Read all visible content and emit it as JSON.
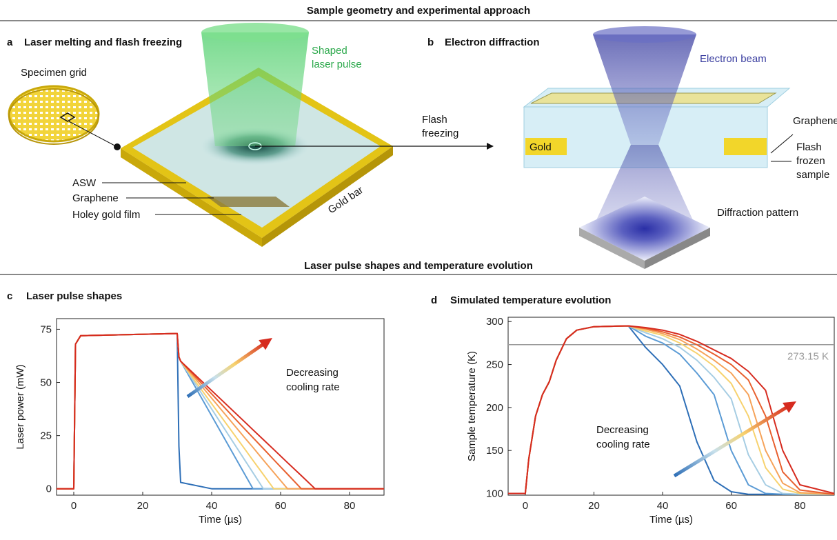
{
  "sections": [
    "Sample geometry and experimental approach",
    "Laser pulse shapes and temperature evolution"
  ],
  "panels": {
    "a": {
      "letter": "a",
      "title": "Laser melting and flash freezing",
      "specimen_grid": "Specimen grid",
      "laser": [
        "Shaped",
        "laser pulse"
      ],
      "asw": "ASW",
      "graphene": "Graphene",
      "holey": "Holey gold film",
      "gold_bar": "Gold bar",
      "flash": [
        "Flash",
        "freezing"
      ]
    },
    "b": {
      "letter": "b",
      "title": "Electron diffraction",
      "beam": "Electron beam",
      "graphene": "Graphene",
      "gold": "Gold",
      "sample": [
        "Flash",
        "frozen",
        "sample"
      ],
      "pattern": "Diffraction pattern"
    }
  },
  "chart_data": [
    {
      "type": "line",
      "panel": "c",
      "title": "Laser pulse shapes",
      "xlabel": "Time (µs)",
      "ylabel": "Laser power (mW)",
      "annotation": [
        "Decreasing",
        "cooling rate"
      ],
      "x": [
        -5,
        0,
        0.5,
        2,
        30,
        30.5,
        31,
        40,
        50,
        52,
        55,
        58,
        62,
        66,
        70,
        90
      ],
      "series": [
        {
          "color": "#2e6fb7",
          "values": [
            0,
            0,
            68,
            72,
            73,
            20,
            3,
            0,
            0,
            0,
            0,
            0,
            0,
            0,
            0,
            0
          ]
        },
        {
          "color": "#5b9bd5",
          "values": [
            0,
            0,
            68,
            72,
            73,
            62,
            60,
            34.3,
            5.7,
            0,
            0,
            0,
            0,
            0,
            0,
            0
          ]
        },
        {
          "color": "#a6cde3",
          "values": [
            0,
            0,
            68,
            72,
            73,
            62,
            60,
            37.5,
            12.5,
            7.5,
            0,
            0,
            0,
            0,
            0,
            0
          ]
        },
        {
          "color": "#f7d26e",
          "values": [
            0,
            0,
            68,
            72,
            73,
            62,
            60,
            40,
            17.8,
            13.3,
            6.7,
            0,
            0,
            0,
            0,
            0
          ]
        },
        {
          "color": "#f6a35a",
          "values": [
            0,
            0,
            68,
            72,
            73,
            62,
            60,
            42.6,
            23.2,
            19.4,
            13.5,
            7.7,
            0,
            0,
            0,
            0
          ]
        },
        {
          "color": "#e8602f",
          "values": [
            0,
            0,
            68,
            72,
            73,
            62,
            60,
            44.6,
            27.4,
            24,
            18.9,
            13.7,
            6.9,
            0,
            0,
            0
          ]
        },
        {
          "color": "#d62b1f",
          "values": [
            0,
            0,
            68,
            72,
            73,
            62,
            60,
            46.2,
            30.8,
            27.7,
            23.1,
            18.5,
            12.3,
            6.2,
            0,
            0
          ]
        }
      ],
      "xlim": [
        -5,
        90
      ],
      "ylim": [
        -3,
        80
      ],
      "xticks": [
        0,
        20,
        40,
        60,
        80
      ],
      "yticks": [
        0,
        25,
        50,
        75
      ]
    },
    {
      "type": "line",
      "panel": "d",
      "title": "Simulated temperature evolution",
      "xlabel": "Time (µs)",
      "ylabel": "Sample temperature (K)",
      "annotation": [
        "Decreasing",
        "cooling rate"
      ],
      "hline": {
        "value": 273.15,
        "label": "273.15 K",
        "color": "#9a9a9a"
      },
      "x": [
        -5,
        0,
        1,
        3,
        5,
        7,
        9,
        12,
        15,
        20,
        30,
        35,
        40,
        45,
        50,
        55,
        60,
        65,
        70,
        75,
        80,
        90
      ],
      "series": [
        {
          "color": "#2e6fb7",
          "values": [
            100,
            100,
            140,
            190,
            215,
            230,
            255,
            280,
            290,
            294,
            295,
            270,
            250,
            225,
            160,
            115,
            102,
            99,
            99,
            99,
            99,
            99
          ]
        },
        {
          "color": "#5b9bd5",
          "values": [
            100,
            100,
            140,
            190,
            215,
            230,
            255,
            280,
            290,
            294,
            295,
            283,
            275,
            262,
            240,
            215,
            150,
            110,
            100,
            99,
            99,
            99
          ]
        },
        {
          "color": "#a6cde3",
          "values": [
            100,
            100,
            140,
            190,
            215,
            230,
            255,
            280,
            290,
            294,
            295,
            287,
            280,
            270,
            255,
            235,
            210,
            145,
            110,
            100,
            99,
            99
          ]
        },
        {
          "color": "#f7d26e",
          "values": [
            100,
            100,
            140,
            190,
            215,
            230,
            255,
            280,
            290,
            294,
            295,
            289,
            284,
            275,
            263,
            248,
            228,
            190,
            130,
            105,
            100,
            99
          ]
        },
        {
          "color": "#f6a35a",
          "values": [
            100,
            100,
            140,
            190,
            215,
            230,
            255,
            280,
            290,
            294,
            295,
            291,
            286,
            279,
            268,
            255,
            240,
            215,
            150,
            112,
            101,
            99
          ]
        },
        {
          "color": "#e8602f",
          "values": [
            100,
            100,
            140,
            190,
            215,
            230,
            255,
            280,
            290,
            294,
            295,
            292,
            288,
            282,
            273,
            262,
            250,
            232,
            190,
            125,
            104,
            99
          ]
        },
        {
          "color": "#d62b1f",
          "values": [
            100,
            100,
            140,
            190,
            215,
            230,
            255,
            280,
            290,
            294,
            295,
            293,
            290,
            285,
            277,
            267,
            257,
            242,
            220,
            150,
            110,
            100
          ]
        }
      ],
      "xlim": [
        -5,
        90
      ],
      "ylim": [
        98,
        305
      ],
      "xticks": [
        0,
        20,
        40,
        60,
        80
      ],
      "yticks": [
        100,
        150,
        200,
        250,
        300
      ]
    }
  ]
}
